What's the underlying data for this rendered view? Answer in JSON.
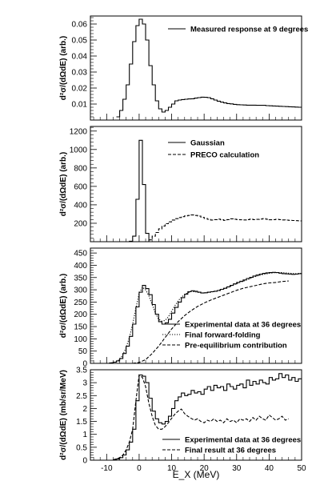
{
  "chart_data": [
    {
      "type": "line",
      "ylabel": "d²σ/(dΩdE) (arb.)",
      "xlim": [
        -15,
        50
      ],
      "ylim": [
        0,
        0.065
      ],
      "yticks": [
        0.01,
        0.02,
        0.03,
        0.04,
        0.05,
        0.06
      ],
      "ytick_labels": [
        "0.01",
        "0.02",
        "0.03",
        "0.04",
        "0.05",
        "0.06"
      ],
      "legend_position": "top-right",
      "series": [
        {
          "name": "Measured response at 9 degrees",
          "style": "step",
          "x": [
            -7,
            -6,
            -5,
            -4,
            -3,
            -2,
            -1,
            0,
            1,
            2,
            3,
            4,
            5,
            6,
            7,
            8,
            9,
            10,
            11,
            12,
            13,
            14,
            15,
            16,
            17,
            18,
            19,
            20,
            21,
            22,
            23,
            24,
            25,
            26,
            27,
            28,
            29,
            30,
            31,
            32,
            33,
            34,
            35,
            36,
            37,
            38,
            39,
            40,
            41,
            42,
            43,
            44,
            45,
            46,
            47,
            48,
            49,
            50
          ],
          "y": [
            0.002,
            0.006,
            0.013,
            0.022,
            0.035,
            0.049,
            0.059,
            0.063,
            0.06,
            0.05,
            0.034,
            0.022,
            0.012,
            0.007,
            0.005,
            0.006,
            0.008,
            0.01,
            0.012,
            0.0125,
            0.0128,
            0.013,
            0.0132,
            0.0133,
            0.0137,
            0.014,
            0.0143,
            0.0142,
            0.014,
            0.0133,
            0.0125,
            0.0118,
            0.0112,
            0.0107,
            0.0103,
            0.0101,
            0.0098,
            0.0096,
            0.0095,
            0.0094,
            0.0093,
            0.0093,
            0.0093,
            0.0092,
            0.0092,
            0.0092,
            0.009,
            0.0089,
            0.0088,
            0.0087,
            0.0086,
            0.0085,
            0.0084,
            0.0083,
            0.0082,
            0.0081,
            0.008,
            0.008
          ]
        }
      ]
    },
    {
      "type": "line",
      "ylabel": "d²σ/(dΩdE) (arb.)",
      "xlim": [
        -15,
        50
      ],
      "ylim": [
        0,
        1250
      ],
      "yticks": [
        200,
        400,
        600,
        800,
        1000,
        1200
      ],
      "ytick_labels": [
        "200",
        "400",
        "600",
        "800",
        "1000",
        "1200"
      ],
      "legend_position": "top-right",
      "series": [
        {
          "name": "Gaussian",
          "style": "step",
          "x": [
            -4,
            -3,
            -2,
            -1,
            0,
            1,
            2,
            3
          ],
          "y": [
            0,
            5,
            60,
            460,
            1100,
            620,
            90,
            0
          ]
        },
        {
          "name": "PRECO calculation",
          "style": "step-dashed",
          "x": [
            2,
            3,
            4,
            5,
            6,
            7,
            8,
            9,
            10,
            11,
            12,
            13,
            14,
            15,
            16,
            17,
            18,
            19,
            20,
            21,
            22,
            23,
            24,
            25,
            26,
            27,
            28,
            29,
            30,
            31,
            32,
            33,
            34,
            35,
            36,
            37,
            38,
            39,
            40,
            41,
            42,
            43,
            44,
            45,
            46,
            47,
            48,
            49,
            50
          ],
          "y": [
            0,
            20,
            60,
            100,
            140,
            170,
            195,
            215,
            235,
            250,
            262,
            272,
            280,
            285,
            290,
            285,
            278,
            265,
            252,
            243,
            235,
            240,
            245,
            238,
            232,
            240,
            248,
            244,
            240,
            238,
            236,
            240,
            245,
            240,
            242,
            246,
            250,
            244,
            238,
            240,
            243,
            240,
            236,
            234,
            232,
            230,
            228,
            226,
            225
          ]
        }
      ]
    },
    {
      "type": "line",
      "ylabel": "d²σ/(dΩdE) (arb.)",
      "xlim": [
        -15,
        50
      ],
      "ylim": [
        0,
        470
      ],
      "yticks": [
        0,
        50,
        100,
        150,
        200,
        250,
        300,
        350,
        400,
        450
      ],
      "ytick_labels": [
        "0",
        "50",
        "100",
        "150",
        "200",
        "250",
        "300",
        "350",
        "400",
        "450"
      ],
      "legend_position": "bottom-right",
      "series": [
        {
          "name": "Experimental data at 36 degrees",
          "style": "step",
          "x": [
            -10,
            -9,
            -8,
            -7,
            -6,
            -5,
            -4,
            -3,
            -2,
            -1,
            0,
            1,
            2,
            3,
            4,
            5,
            6,
            7,
            8,
            9,
            10,
            11,
            12,
            13,
            14,
            15,
            16,
            17,
            18,
            19,
            20,
            21,
            22,
            23,
            24,
            25,
            26,
            27,
            28,
            29,
            30,
            31,
            32,
            33,
            34,
            35,
            36,
            37,
            38,
            39,
            40,
            41,
            42,
            43,
            44,
            45,
            46,
            47,
            48,
            49,
            50
          ],
          "y": [
            0,
            2,
            5,
            10,
            20,
            40,
            70,
            110,
            160,
            230,
            290,
            318,
            305,
            280,
            240,
            200,
            170,
            160,
            165,
            180,
            205,
            228,
            250,
            268,
            282,
            292,
            296,
            294,
            290,
            287,
            288,
            290,
            292,
            294,
            297,
            302,
            306,
            312,
            318,
            324,
            330,
            335,
            340,
            346,
            351,
            356,
            360,
            364,
            367,
            369,
            370,
            371,
            370,
            368,
            366,
            365,
            364,
            363,
            364,
            366,
            368
          ]
        },
        {
          "name": "Final forward-folding",
          "style": "dotted",
          "x": [
            -10,
            -8,
            -6,
            -5,
            -4,
            -3,
            -2,
            -1,
            0,
            1,
            2,
            3,
            4,
            5,
            6,
            7,
            8,
            9,
            10,
            11,
            12,
            13,
            14,
            15,
            16,
            17,
            18,
            19,
            20,
            22,
            24,
            26,
            28,
            30,
            32,
            34,
            36,
            38,
            40,
            42,
            44,
            46,
            48,
            50
          ],
          "y": [
            0,
            3,
            15,
            35,
            65,
            105,
            160,
            225,
            285,
            310,
            300,
            275,
            240,
            205,
            180,
            172,
            175,
            190,
            212,
            235,
            255,
            270,
            280,
            288,
            292,
            292,
            290,
            288,
            287,
            290,
            296,
            304,
            314,
            325,
            335,
            345,
            355,
            362,
            367,
            370,
            370,
            368,
            366,
            367
          ]
        },
        {
          "name": "Pre-equilibrium contribution",
          "style": "dashed",
          "x": [
            -2,
            0,
            2,
            4,
            6,
            8,
            10,
            12,
            14,
            16,
            18,
            20,
            22,
            24,
            26,
            28,
            30,
            32,
            34,
            36,
            38,
            40,
            42,
            44,
            46
          ],
          "y": [
            0,
            4,
            15,
            40,
            70,
            105,
            140,
            170,
            195,
            215,
            232,
            246,
            258,
            268,
            278,
            288,
            298,
            306,
            312,
            318,
            324,
            328,
            330,
            334,
            336
          ]
        }
      ]
    },
    {
      "type": "line",
      "ylabel": "d²σ/(dΩdE) (mb/sr/MeV)",
      "xlabel": "E_X (MeV)",
      "xlim": [
        -15,
        50
      ],
      "ylim": [
        0,
        3.5
      ],
      "yticks": [
        0,
        0.5,
        1,
        1.5,
        2,
        2.5,
        3,
        3.5
      ],
      "ytick_labels": [
        "0",
        "0.5",
        "1",
        "1.5",
        "2",
        "2.5",
        "3",
        "3.5"
      ],
      "xticks": [
        -10,
        0,
        10,
        20,
        30,
        40,
        50
      ],
      "xtick_labels": [
        "-10",
        "0",
        "10",
        "20",
        "30",
        "40",
        "50"
      ],
      "legend_position": "bottom-right",
      "series": [
        {
          "name": "Experimental data at 36 degrees",
          "style": "step",
          "x": [
            -8,
            -7,
            -6,
            -5,
            -4,
            -3,
            -2,
            -1,
            0,
            1,
            2,
            3,
            4,
            5,
            6,
            7,
            8,
            9,
            10,
            11,
            12,
            13,
            14,
            15,
            16,
            17,
            18,
            19,
            20,
            21,
            22,
            23,
            24,
            25,
            26,
            27,
            28,
            29,
            30,
            31,
            32,
            33,
            34,
            35,
            36,
            37,
            38,
            39,
            40,
            41,
            42,
            43,
            44,
            45,
            46,
            47,
            48,
            49
          ],
          "y": [
            0.02,
            0.05,
            0.1,
            0.2,
            0.4,
            0.7,
            1.2,
            2.3,
            3.3,
            3.25,
            3.0,
            2.4,
            1.9,
            1.6,
            1.45,
            1.4,
            1.5,
            1.7,
            2.0,
            2.3,
            2.45,
            2.6,
            2.5,
            2.55,
            2.7,
            2.6,
            2.65,
            2.55,
            2.75,
            2.85,
            2.7,
            2.9,
            2.8,
            2.85,
            2.7,
            2.95,
            2.85,
            2.75,
            2.9,
            2.95,
            2.8,
            3.1,
            2.9,
            3.05,
            2.95,
            3.1,
            3.0,
            2.95,
            3.2,
            3.1,
            3.15,
            3.35,
            3.2,
            3.3,
            3.1,
            3.2,
            3.05,
            3.15
          ]
        },
        {
          "name": "Final result at 36 degrees",
          "style": "dashed",
          "x": [
            -8,
            -7,
            -6,
            -5,
            -4,
            -3,
            -2,
            -1,
            0,
            1,
            2,
            3,
            4,
            5,
            6,
            7,
            8,
            9,
            10,
            11,
            12,
            13,
            14,
            15,
            16,
            17,
            18,
            19,
            20,
            21,
            22,
            23,
            24,
            25,
            26,
            27,
            28,
            29,
            30,
            31,
            32,
            33,
            34,
            35,
            36,
            37,
            38,
            39,
            40,
            41,
            42,
            43,
            44,
            45,
            46
          ],
          "y": [
            0.02,
            0.05,
            0.1,
            0.2,
            0.4,
            0.7,
            1.2,
            2.3,
            3.3,
            3.2,
            2.85,
            2.2,
            1.7,
            1.35,
            1.2,
            1.2,
            1.3,
            1.45,
            1.62,
            1.78,
            1.9,
            1.98,
            1.8,
            1.7,
            1.62,
            1.55,
            1.6,
            1.5,
            1.45,
            1.55,
            1.5,
            1.6,
            1.5,
            1.55,
            1.45,
            1.6,
            1.5,
            1.55,
            1.45,
            1.6,
            1.55,
            1.6,
            1.5,
            1.65,
            1.55,
            1.7,
            1.6,
            1.55,
            1.75,
            1.65,
            1.55,
            1.6,
            1.7,
            1.55,
            1.6
          ]
        }
      ]
    }
  ]
}
